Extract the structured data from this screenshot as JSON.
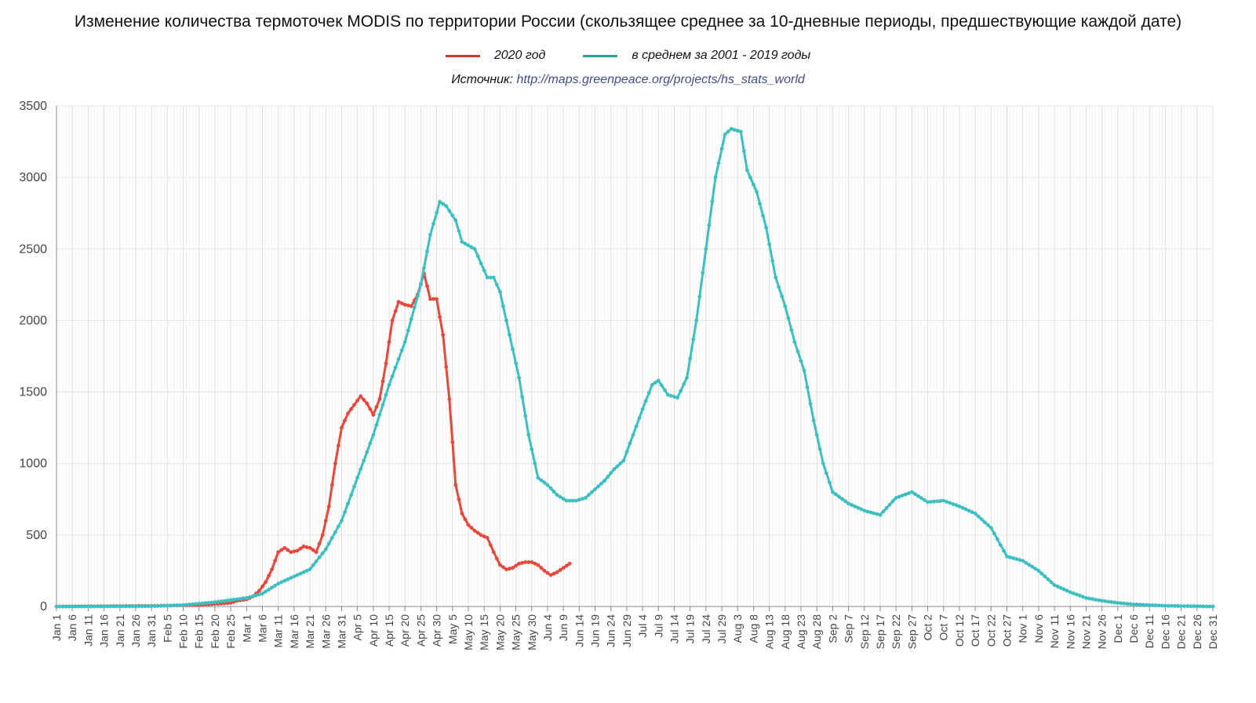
{
  "title": "Изменение количества термоточек MODIS по территории России (скользящее среднее за 10-дневные периоды, предшествующие каждой дате)",
  "source_label": "Источник:",
  "source_url": "http://maps.greenpeace.org/projects/hs_stats_world",
  "colors": {
    "series_2020": "#e8473c",
    "series_avg": "#3dbfc1",
    "grid": "#e3e3e3",
    "axis": "#888888"
  },
  "chart_data": {
    "type": "line",
    "title": "Изменение количества термоточек MODIS по территории России (скользящее среднее за 10-дневные периоды, предшествующие каждой дате)",
    "xlabel": "",
    "ylabel": "",
    "ylim": [
      0,
      3500
    ],
    "y_ticks": [
      "0",
      "500",
      "1000",
      "1500",
      "2000",
      "2500",
      "3000",
      "3500"
    ],
    "x_range": [
      "Jan 1",
      "Dec 31"
    ],
    "x_tick_labels": [
      "Jan 1",
      "Jan 6",
      "Jan 11",
      "Jan 16",
      "Jan 21",
      "Jan 26",
      "Jan 31",
      "Feb 5",
      "Feb 10",
      "Feb 15",
      "Feb 20",
      "Feb 25",
      "Mar 1",
      "Mar 6",
      "Mar 11",
      "Mar 16",
      "Mar 21",
      "Mar 26",
      "Mar 31",
      "Apr 5",
      "Apr 10",
      "Apr 15",
      "Apr 20",
      "Apr 25",
      "Apr 30",
      "May 5",
      "May 10",
      "May 15",
      "May 20",
      "May 25",
      "May 30",
      "Jun 4",
      "Jun 9",
      "Jun 14",
      "Jun 19",
      "Jun 24",
      "Jun 29",
      "Jul 4",
      "Jul 9",
      "Jul 14",
      "Jul 19",
      "Jul 24",
      "Jul 29",
      "Aug 3",
      "Aug 8",
      "Aug 13",
      "Aug 18",
      "Aug 23",
      "Aug 28",
      "Sep 2",
      "Sep 7",
      "Sep 12",
      "Sep 17",
      "Sep 22",
      "Sep 27",
      "Oct 2",
      "Oct 7",
      "Oct 12",
      "Oct 17",
      "Oct 22",
      "Oct 27",
      "Nov 1",
      "Nov 6",
      "Nov 11",
      "Nov 16",
      "Nov 21",
      "Nov 26",
      "Dec 1",
      "Dec 6",
      "Dec 11",
      "Dec 16",
      "Dec 21",
      "Dec 26",
      "Dec 31"
    ],
    "grid": true,
    "legend_position": "top-center",
    "series": [
      {
        "name": "2020 год",
        "color": "#e8473c",
        "points": [
          [
            "Jan 1",
            0
          ],
          [
            "Jan 15",
            2
          ],
          [
            "Jan 30",
            4
          ],
          [
            "Feb 10",
            8
          ],
          [
            "Feb 15",
            10
          ],
          [
            "Feb 20",
            18
          ],
          [
            "Feb 25",
            25
          ],
          [
            "Feb 27",
            40
          ],
          [
            "Mar 1",
            50
          ],
          [
            "Mar 3",
            70
          ],
          [
            "Mar 5",
            110
          ],
          [
            "Mar 7",
            170
          ],
          [
            "Mar 9",
            260
          ],
          [
            "Mar 11",
            380
          ],
          [
            "Mar 13",
            410
          ],
          [
            "Mar 15",
            380
          ],
          [
            "Mar 17",
            390
          ],
          [
            "Mar 19",
            420
          ],
          [
            "Mar 21",
            410
          ],
          [
            "Mar 23",
            380
          ],
          [
            "Mar 25",
            500
          ],
          [
            "Mar 27",
            700
          ],
          [
            "Mar 29",
            1000
          ],
          [
            "Mar 31",
            1250
          ],
          [
            "Apr 2",
            1350
          ],
          [
            "Apr 4",
            1410
          ],
          [
            "Apr 6",
            1470
          ],
          [
            "Apr 8",
            1420
          ],
          [
            "Apr 10",
            1340
          ],
          [
            "Apr 12",
            1450
          ],
          [
            "Apr 14",
            1700
          ],
          [
            "Apr 16",
            2000
          ],
          [
            "Apr 18",
            2130
          ],
          [
            "Apr 20",
            2110
          ],
          [
            "Apr 22",
            2100
          ],
          [
            "Apr 24",
            2180
          ],
          [
            "Apr 26",
            2330
          ],
          [
            "Apr 28",
            2150
          ],
          [
            "Apr 30",
            2150
          ],
          [
            "May 2",
            1900
          ],
          [
            "May 4",
            1450
          ],
          [
            "May 6",
            850
          ],
          [
            "May 8",
            650
          ],
          [
            "May 10",
            570
          ],
          [
            "May 12",
            530
          ],
          [
            "May 14",
            500
          ],
          [
            "May 16",
            480
          ],
          [
            "May 18",
            380
          ],
          [
            "May 20",
            290
          ],
          [
            "May 22",
            260
          ],
          [
            "May 24",
            270
          ],
          [
            "May 26",
            300
          ],
          [
            "May 28",
            310
          ],
          [
            "May 30",
            310
          ],
          [
            "Jun 1",
            290
          ],
          [
            "Jun 3",
            250
          ],
          [
            "Jun 5",
            220
          ],
          [
            "Jun 7",
            240
          ],
          [
            "Jun 9",
            270
          ],
          [
            "Jun 11",
            300
          ]
        ]
      },
      {
        "name": "в среднем за 2001 - 2019 годы",
        "color": "#3dbfc1",
        "points": [
          [
            "Jan 1",
            0
          ],
          [
            "Jan 31",
            2
          ],
          [
            "Feb 10",
            10
          ],
          [
            "Feb 15",
            20
          ],
          [
            "Feb 20",
            30
          ],
          [
            "Feb 25",
            45
          ],
          [
            "Mar 1",
            60
          ],
          [
            "Mar 6",
            90
          ],
          [
            "Mar 11",
            160
          ],
          [
            "Mar 16",
            210
          ],
          [
            "Mar 21",
            260
          ],
          [
            "Mar 26",
            400
          ],
          [
            "Mar 31",
            600
          ],
          [
            "Apr 5",
            900
          ],
          [
            "Apr 10",
            1200
          ],
          [
            "Apr 15",
            1550
          ],
          [
            "Apr 20",
            1850
          ],
          [
            "Apr 25",
            2250
          ],
          [
            "Apr 28",
            2600
          ],
          [
            "May 1",
            2830
          ],
          [
            "May 3",
            2800
          ],
          [
            "May 6",
            2700
          ],
          [
            "May 8",
            2550
          ],
          [
            "May 12",
            2500
          ],
          [
            "May 16",
            2300
          ],
          [
            "May 18",
            2300
          ],
          [
            "May 20",
            2200
          ],
          [
            "May 23",
            1900
          ],
          [
            "May 26",
            1600
          ],
          [
            "May 29",
            1200
          ],
          [
            "Jun 1",
            900
          ],
          [
            "Jun 4",
            850
          ],
          [
            "Jun 7",
            780
          ],
          [
            "Jun 10",
            740
          ],
          [
            "Jun 13",
            740
          ],
          [
            "Jun 16",
            760
          ],
          [
            "Jun 19",
            820
          ],
          [
            "Jun 22",
            880
          ],
          [
            "Jun 25",
            960
          ],
          [
            "Jun 28",
            1020
          ],
          [
            "Jul 1",
            1200
          ],
          [
            "Jul 4",
            1380
          ],
          [
            "Jul 7",
            1550
          ],
          [
            "Jul 9",
            1580
          ],
          [
            "Jul 12",
            1480
          ],
          [
            "Jul 15",
            1460
          ],
          [
            "Jul 18",
            1600
          ],
          [
            "Jul 21",
            2000
          ],
          [
            "Jul 24",
            2500
          ],
          [
            "Jul 27",
            3000
          ],
          [
            "Jul 30",
            3300
          ],
          [
            "Aug 1",
            3340
          ],
          [
            "Aug 4",
            3320
          ],
          [
            "Aug 6",
            3050
          ],
          [
            "Aug 9",
            2900
          ],
          [
            "Aug 12",
            2650
          ],
          [
            "Aug 15",
            2300
          ],
          [
            "Aug 18",
            2100
          ],
          [
            "Aug 21",
            1850
          ],
          [
            "Aug 24",
            1650
          ],
          [
            "Aug 27",
            1300
          ],
          [
            "Aug 30",
            1000
          ],
          [
            "Sep 2",
            800
          ],
          [
            "Sep 7",
            720
          ],
          [
            "Sep 12",
            670
          ],
          [
            "Sep 17",
            640
          ],
          [
            "Sep 22",
            760
          ],
          [
            "Sep 27",
            800
          ],
          [
            "Oct 2",
            730
          ],
          [
            "Oct 7",
            740
          ],
          [
            "Oct 12",
            700
          ],
          [
            "Oct 17",
            650
          ],
          [
            "Oct 22",
            550
          ],
          [
            "Oct 27",
            350
          ],
          [
            "Nov 1",
            320
          ],
          [
            "Nov 6",
            250
          ],
          [
            "Nov 11",
            150
          ],
          [
            "Nov 16",
            100
          ],
          [
            "Nov 21",
            60
          ],
          [
            "Nov 26",
            40
          ],
          [
            "Dec 1",
            25
          ],
          [
            "Dec 6",
            15
          ],
          [
            "Dec 11",
            10
          ],
          [
            "Dec 16",
            5
          ],
          [
            "Dec 21",
            3
          ],
          [
            "Dec 26",
            2
          ],
          [
            "Dec 31",
            0
          ]
        ]
      }
    ]
  }
}
